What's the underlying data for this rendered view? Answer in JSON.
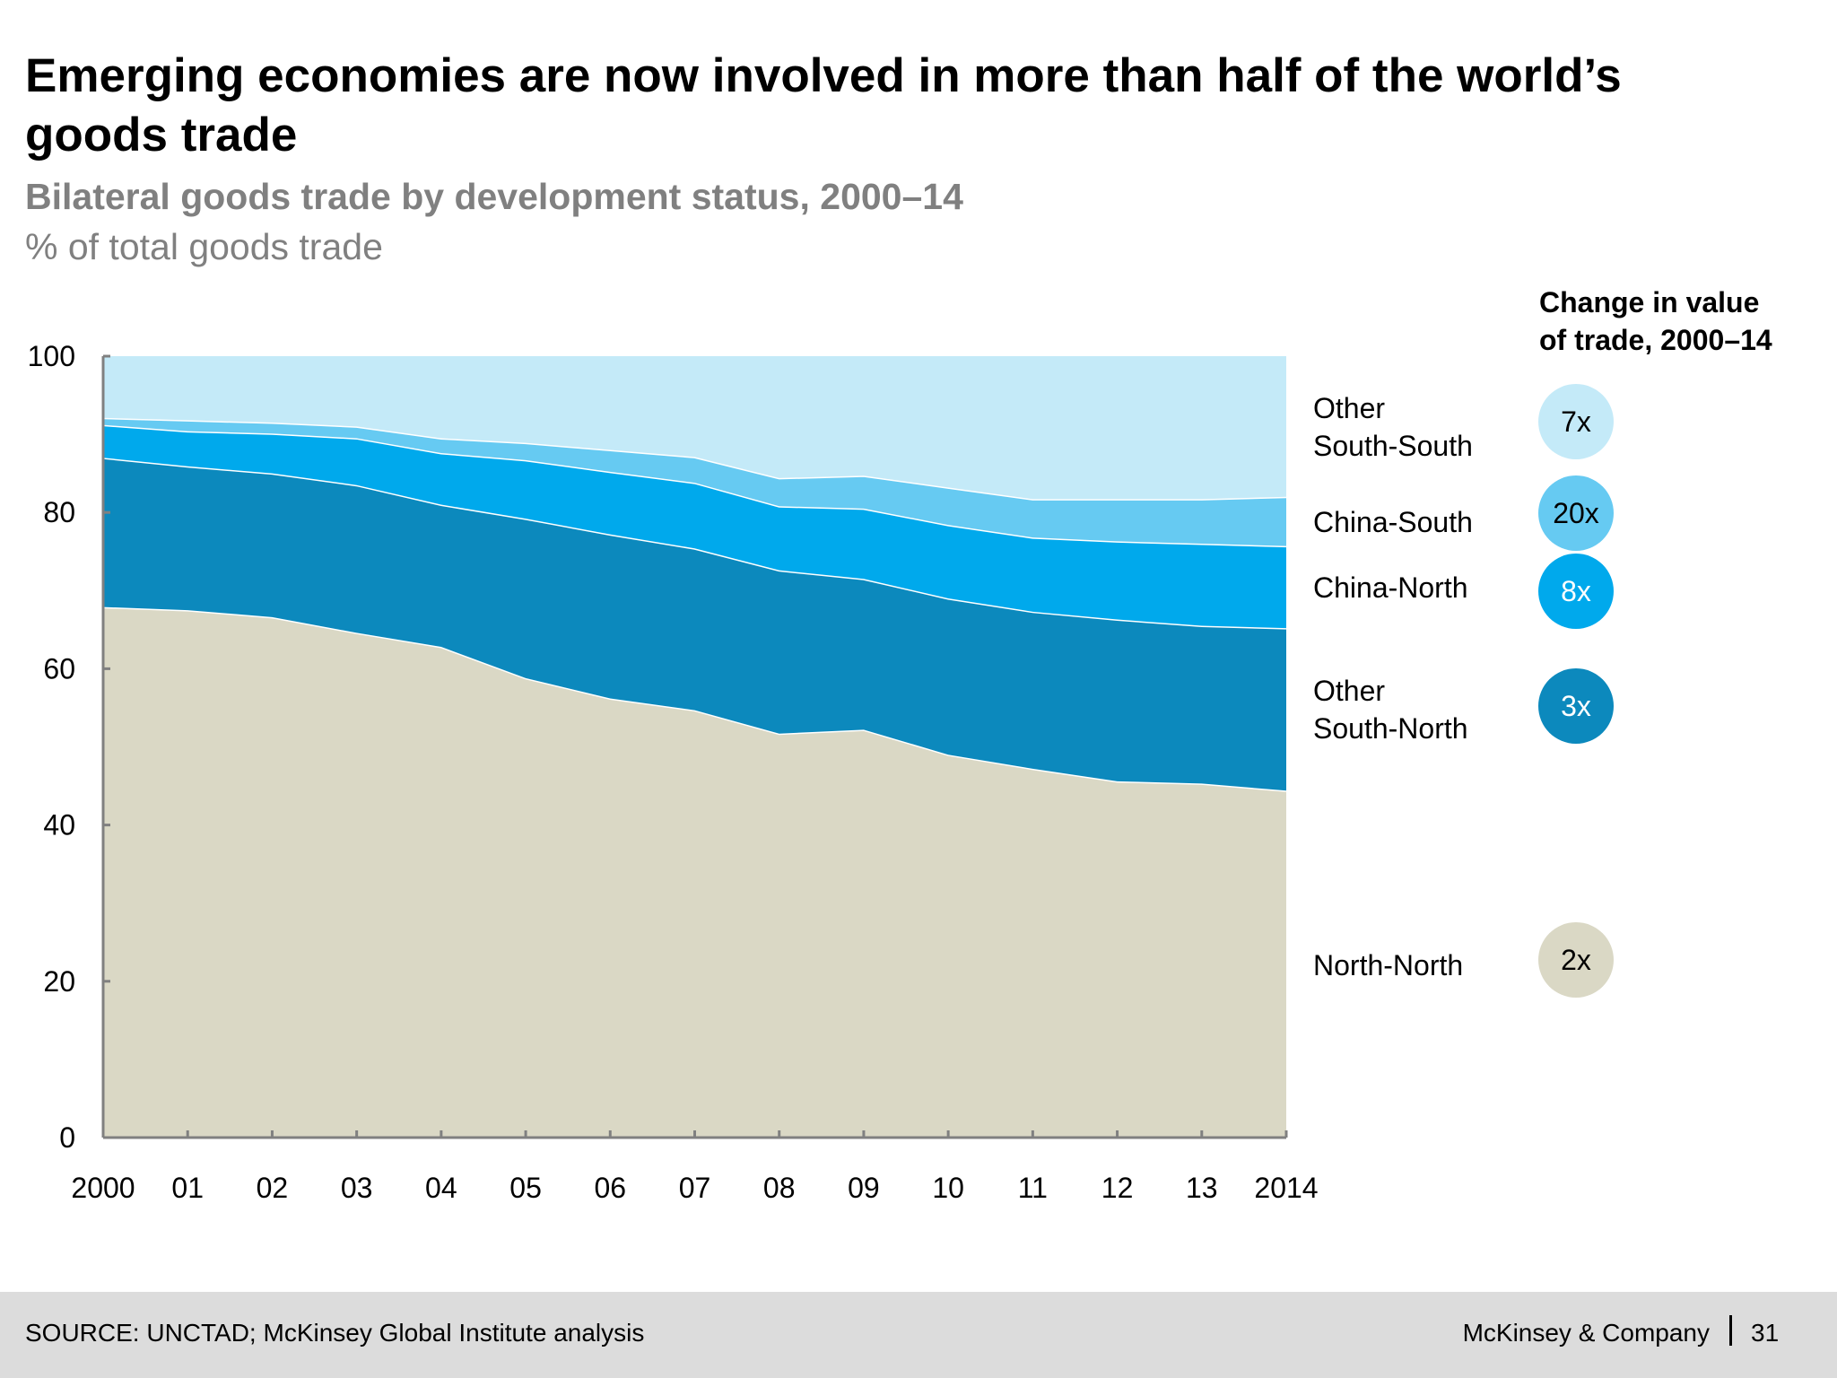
{
  "header": {
    "title": "Emerging economies are now involved in more than half of the world’s goods trade",
    "subtitle": "Bilateral goods trade by development status, 2000–14",
    "unit": "% of total goods trade"
  },
  "legend": {
    "heading_line1": "Change in value",
    "heading_line2": "of trade, 2000–14",
    "items": [
      {
        "label_line1": "Other",
        "label_line2": "South-South",
        "change": "7x",
        "color": "#c4eaf8",
        "text_color": "#000000"
      },
      {
        "label_line1": "China-South",
        "label_line2": "",
        "change": "20x",
        "color": "#66caf2",
        "text_color": "#000000"
      },
      {
        "label_line1": "China-North",
        "label_line2": "",
        "change": "8x",
        "color": "#00a9ec",
        "text_color": "#ffffff"
      },
      {
        "label_line1": "Other",
        "label_line2": "South-North",
        "change": "3x",
        "color": "#0c89bd",
        "text_color": "#ffffff"
      },
      {
        "label_line1": "North-North",
        "label_line2": "",
        "change": "2x",
        "color": "#dad8c5",
        "text_color": "#000000"
      }
    ]
  },
  "chart_data": {
    "type": "area",
    "stacked": true,
    "x": [
      "2000",
      "01",
      "02",
      "03",
      "04",
      "05",
      "06",
      "07",
      "08",
      "09",
      "10",
      "11",
      "12",
      "13",
      "2014"
    ],
    "ylim": [
      0,
      100
    ],
    "yticks": [
      0,
      20,
      40,
      60,
      80,
      100
    ],
    "grid": false,
    "legend_placement": "right",
    "series": [
      {
        "name": "North-North",
        "color": "#dad8c5",
        "values": [
          67.9,
          67.5,
          66.6,
          64.6,
          62.8,
          58.8,
          56.2,
          54.7,
          51.7,
          52.2,
          49.0,
          47.2,
          45.6,
          45.3,
          44.4
        ]
      },
      {
        "name": "Other South-North",
        "color": "#0c89bd",
        "values": [
          19.1,
          18.4,
          18.4,
          18.9,
          18.2,
          20.4,
          21.0,
          20.7,
          20.9,
          19.3,
          20.0,
          20.1,
          20.7,
          20.2,
          20.8
        ]
      },
      {
        "name": "China-North",
        "color": "#00a9ec",
        "values": [
          4.2,
          4.5,
          5.1,
          6.0,
          6.6,
          7.5,
          8.0,
          8.4,
          8.2,
          9.0,
          9.4,
          9.5,
          10.0,
          10.5,
          10.5
        ]
      },
      {
        "name": "China-South",
        "color": "#66caf2",
        "values": [
          0.9,
          1.4,
          1.4,
          1.5,
          1.9,
          2.2,
          2.8,
          3.3,
          3.6,
          4.2,
          4.8,
          4.9,
          5.4,
          5.7,
          6.3
        ]
      },
      {
        "name": "Other South-South",
        "color": "#c4eaf8",
        "values": [
          7.9,
          8.2,
          8.5,
          9.0,
          10.5,
          11.1,
          12.0,
          12.9,
          15.6,
          15.3,
          16.8,
          18.3,
          18.3,
          18.3,
          18.0
        ]
      }
    ]
  },
  "footer": {
    "source": "SOURCE: UNCTAD; McKinsey Global Institute analysis",
    "brand": "McKinsey & Company",
    "page": "31"
  }
}
